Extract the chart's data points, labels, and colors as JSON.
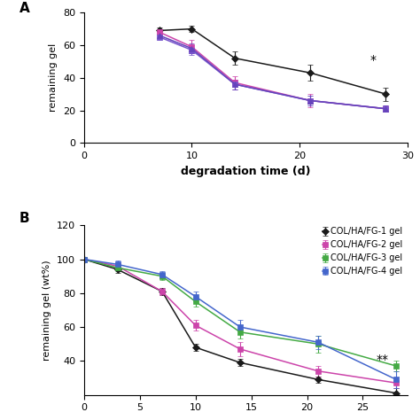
{
  "panel_A": {
    "title": "A",
    "xlabel": "degradation time (d)",
    "ylabel": "remaining gel",
    "xlim": [
      0,
      30
    ],
    "ylim": [
      0,
      80
    ],
    "yticks": [
      0,
      20,
      40,
      60,
      80
    ],
    "xticks": [
      0,
      10,
      20,
      30
    ],
    "xticklabels": [
      "0",
      "10",
      "20",
      "30"
    ],
    "series": [
      {
        "label": "FG-1",
        "color": "#1a1a1a",
        "marker": "D",
        "markersize": 4,
        "x": [
          7,
          10,
          14,
          21,
          28
        ],
        "y": [
          69,
          70,
          52,
          43,
          30
        ],
        "yerr": [
          2,
          2,
          4,
          5,
          4
        ]
      },
      {
        "label": "FG-2",
        "color": "#cc44aa",
        "marker": "s",
        "markersize": 4,
        "x": [
          7,
          10,
          14,
          21,
          28
        ],
        "y": [
          68,
          59,
          37,
          26,
          21
        ],
        "yerr": [
          2,
          4,
          4,
          4,
          2
        ]
      },
      {
        "label": "FG-3",
        "color": "#7755cc",
        "marker": "s",
        "markersize": 4,
        "x": [
          7,
          10,
          14,
          21,
          28
        ],
        "y": [
          65,
          57,
          36,
          26,
          21
        ],
        "yerr": [
          2,
          3,
          3,
          3,
          2
        ]
      },
      {
        "label": "FG-4",
        "color": "#6644bb",
        "marker": "^",
        "markersize": 4,
        "x": [
          7,
          10,
          14,
          21,
          28
        ],
        "y": [
          66,
          58,
          36,
          26,
          21
        ],
        "yerr": [
          2,
          3,
          3,
          3,
          2
        ]
      }
    ],
    "star_x": 26.5,
    "star_y": 47,
    "star_text": "*"
  },
  "panel_B": {
    "title": "B",
    "xlabel": "",
    "ylabel": "remaining gel (wt%)",
    "xlim": [
      0,
      29
    ],
    "ylim": [
      20,
      120
    ],
    "yticks": [
      40,
      60,
      80,
      100,
      120
    ],
    "xticks": [
      0,
      5,
      10,
      15,
      20,
      25
    ],
    "series": [
      {
        "label": "COL/HA/FG-1 gel",
        "color": "#1a1a1a",
        "marker": "D",
        "markersize": 4,
        "x": [
          0,
          3,
          7,
          10,
          14,
          21,
          28
        ],
        "y": [
          100,
          94,
          81,
          48,
          39,
          29,
          21
        ],
        "yerr": [
          0.5,
          2,
          2,
          2,
          2,
          2,
          3
        ]
      },
      {
        "label": "COL/HA/FG-2 gel",
        "color": "#cc44aa",
        "marker": "s",
        "markersize": 4,
        "x": [
          0,
          3,
          7,
          10,
          14,
          21,
          28
        ],
        "y": [
          100,
          96,
          81,
          61,
          47,
          34,
          27
        ],
        "yerr": [
          0.5,
          2,
          2,
          3,
          4,
          3,
          3
        ]
      },
      {
        "label": "COL/HA/FG-3 gel",
        "color": "#44aa44",
        "marker": "s",
        "markersize": 4,
        "x": [
          0,
          3,
          7,
          10,
          14,
          21,
          28
        ],
        "y": [
          100,
          95,
          90,
          75,
          57,
          50,
          37
        ],
        "yerr": [
          0.5,
          2,
          2,
          3,
          4,
          5,
          3
        ]
      },
      {
        "label": "COL/HA/FG-4 gel",
        "color": "#4466cc",
        "marker": "s",
        "markersize": 4,
        "x": [
          0,
          3,
          7,
          10,
          14,
          21,
          28
        ],
        "y": [
          100,
          97,
          91,
          78,
          60,
          51,
          29
        ],
        "yerr": [
          0.5,
          2,
          2,
          3,
          4,
          4,
          5
        ]
      }
    ],
    "star_x": 26.2,
    "star_y": 37,
    "star_text": "**"
  }
}
